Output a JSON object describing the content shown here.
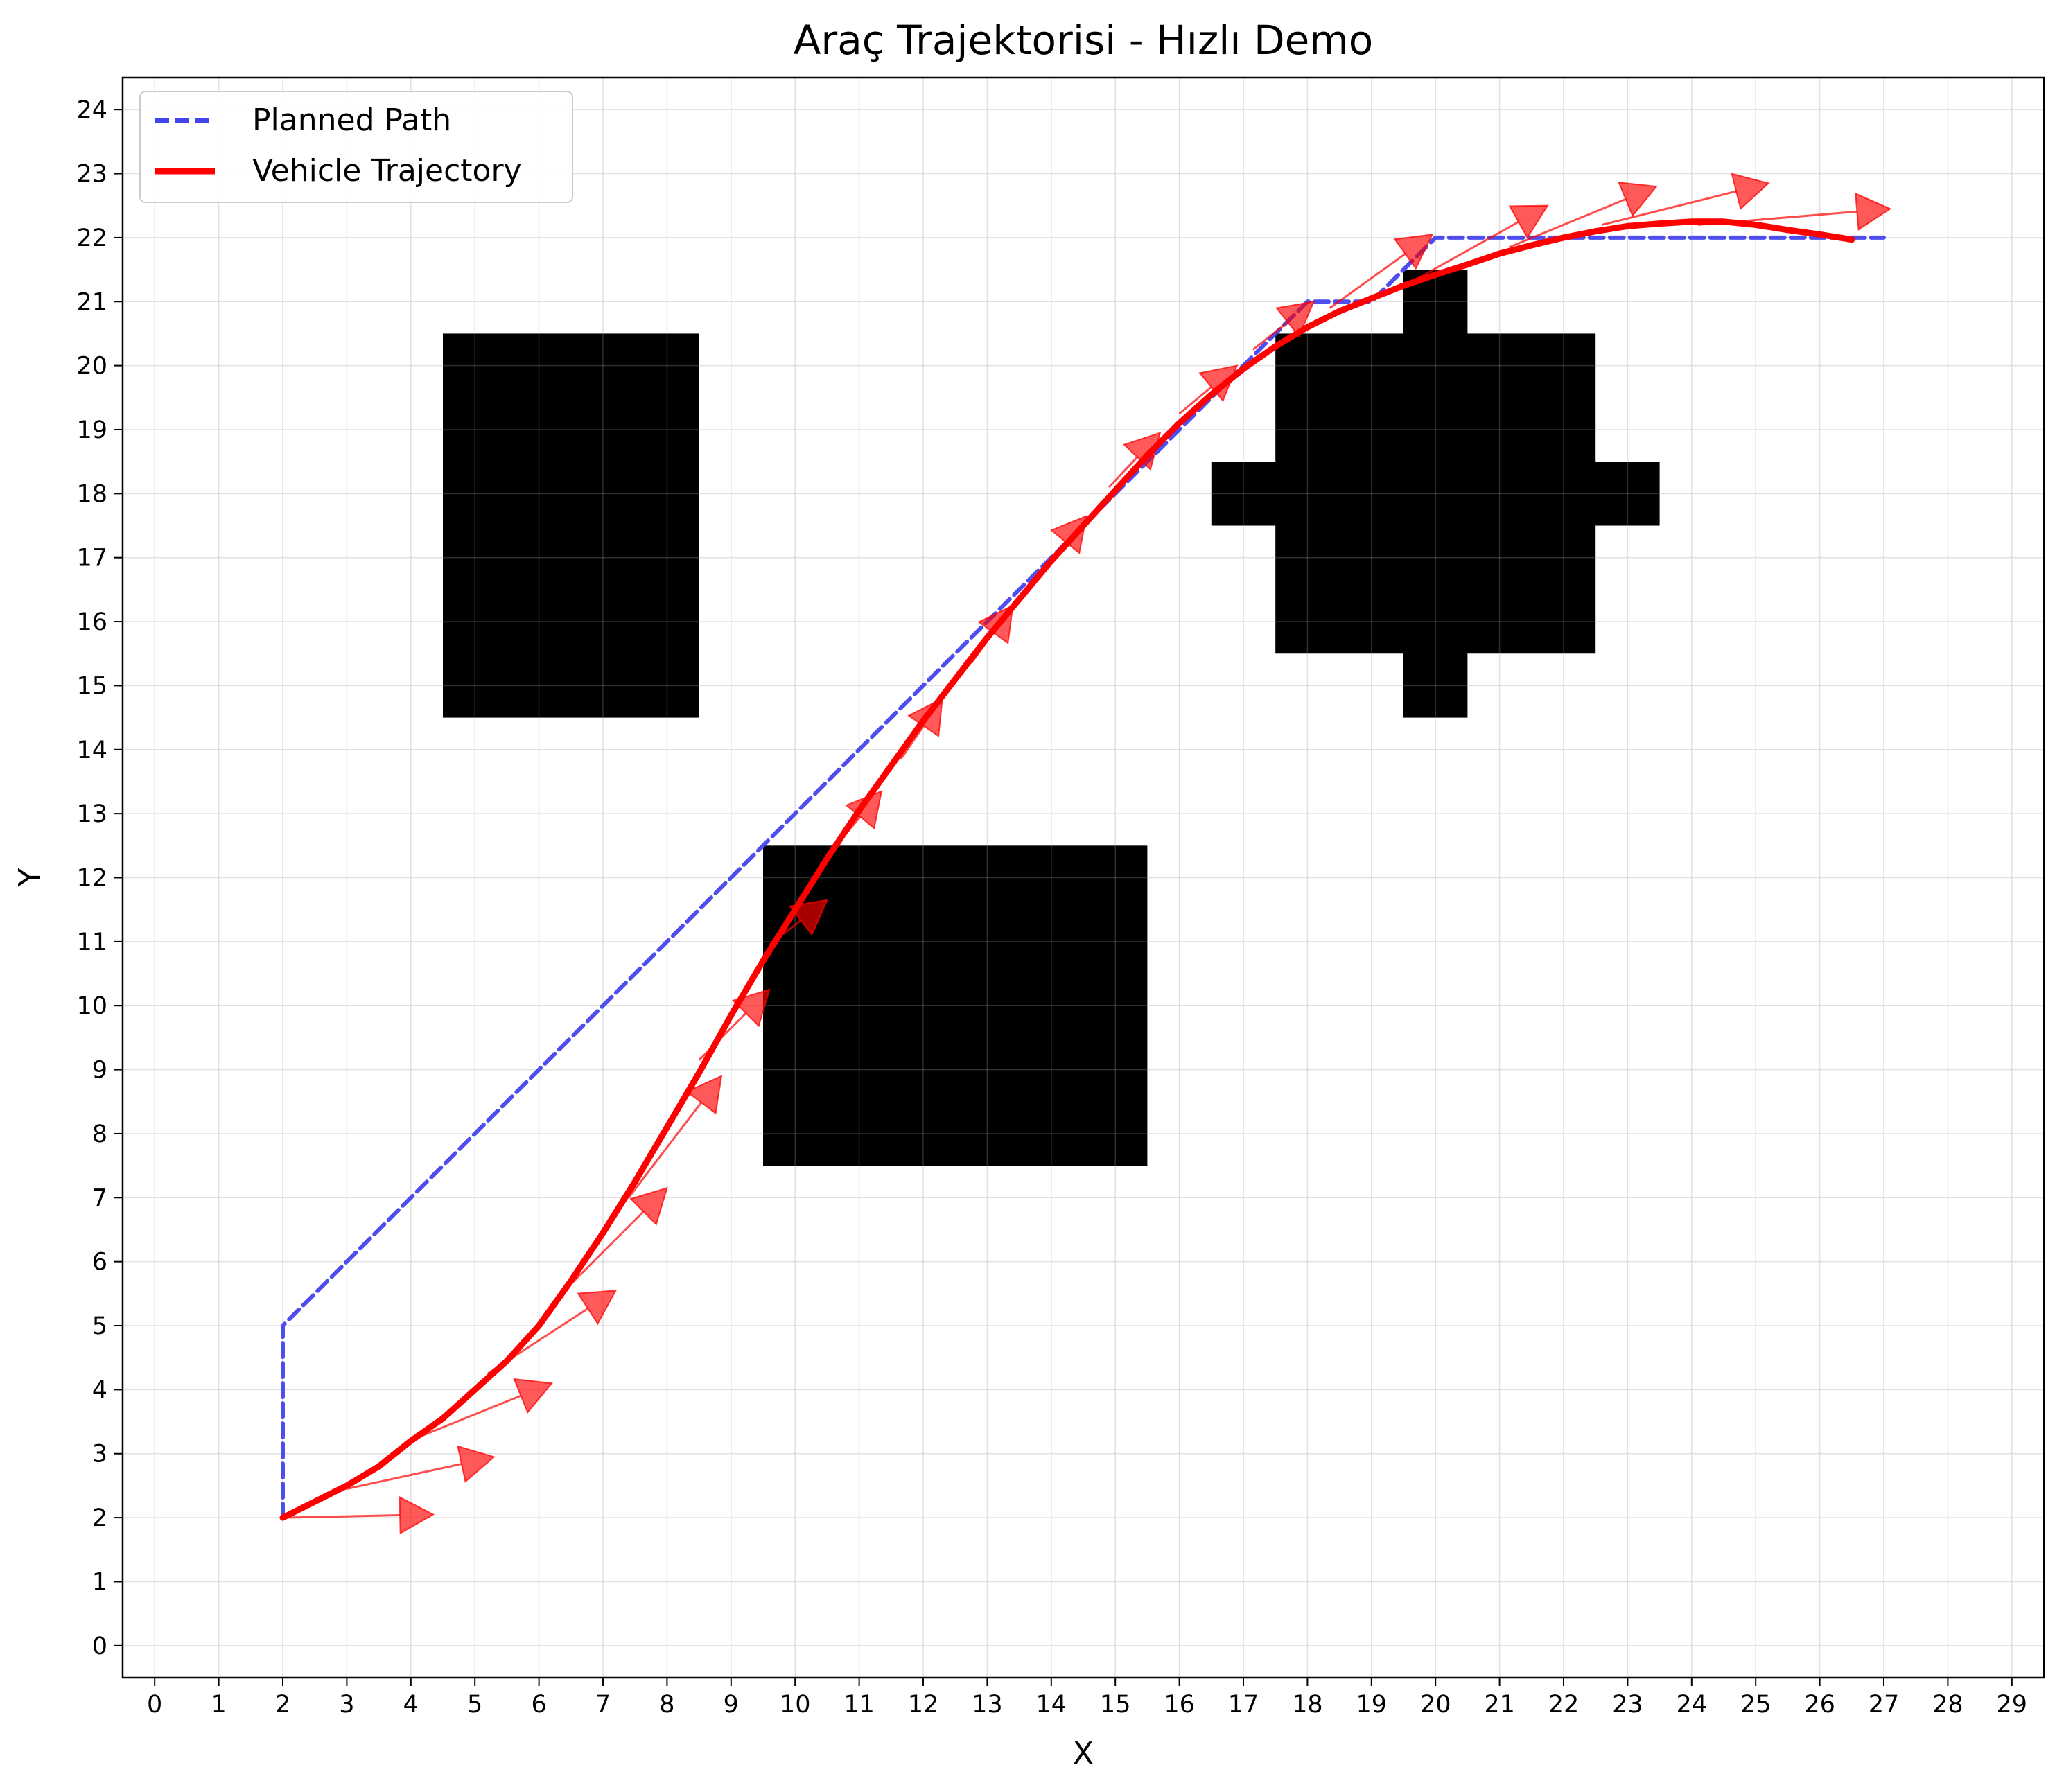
{
  "chart_data": {
    "type": "line",
    "title": "Araç Trajektorisi - Hızlı Demo",
    "xlabel": "X",
    "ylabel": "Y",
    "xlim": [
      -0.5,
      29.5
    ],
    "ylim": [
      -0.5,
      24.5
    ],
    "xticks": [
      0,
      1,
      2,
      3,
      4,
      5,
      6,
      7,
      8,
      9,
      10,
      11,
      12,
      13,
      14,
      15,
      16,
      17,
      18,
      19,
      20,
      21,
      22,
      23,
      24,
      25,
      26,
      27,
      28,
      29
    ],
    "yticks": [
      0,
      1,
      2,
      3,
      4,
      5,
      6,
      7,
      8,
      9,
      10,
      11,
      12,
      13,
      14,
      15,
      16,
      17,
      18,
      19,
      20,
      21,
      22,
      23,
      24
    ],
    "grid": true,
    "legend_position": "top-left",
    "obstacles": [
      {
        "x0": 4.5,
        "x1": 8.5,
        "y0": 14.5,
        "y1": 20.5
      },
      {
        "x0": 9.5,
        "x1": 15.5,
        "y0": 7.5,
        "y1": 12.5
      },
      {
        "x0": 17.5,
        "x1": 22.5,
        "y0": 15.5,
        "y1": 20.5
      },
      {
        "x0": 16.5,
        "x1": 23.5,
        "y0": 17.5,
        "y1": 18.5
      },
      {
        "x0": 19.5,
        "x1": 20.5,
        "y0": 14.5,
        "y1": 21.5
      }
    ],
    "series": [
      {
        "name": "Planned Path",
        "style": "dashed",
        "color": "#4444ee",
        "x": [
          2,
          2,
          10,
          14,
          18,
          19,
          20,
          21,
          22,
          23,
          24,
          25,
          26,
          27
        ],
        "y": [
          2,
          5,
          13,
          17,
          21,
          21,
          22,
          22,
          22,
          22,
          22,
          22,
          22,
          22
        ]
      },
      {
        "name": "Vehicle Trajectory",
        "style": "solid",
        "color": "#ff0000",
        "x": [
          2,
          2.5,
          3,
          3.5,
          4,
          4.5,
          5,
          5.5,
          6,
          6.5,
          7,
          7.5,
          8,
          8.5,
          9,
          9.5,
          10,
          10.5,
          11,
          11.5,
          12,
          12.5,
          13,
          13.5,
          14,
          14.5,
          15,
          15.5,
          16,
          16.5,
          17,
          17.5,
          18,
          18.5,
          19,
          19.5,
          20,
          20.5,
          21,
          21.5,
          22,
          22.5,
          23,
          23.5,
          24,
          24.5,
          25,
          25.5,
          26,
          26.5
        ],
        "y": [
          2.0,
          2.25,
          2.5,
          2.8,
          3.2,
          3.55,
          4.0,
          4.45,
          5.0,
          5.7,
          6.45,
          7.25,
          8.1,
          8.95,
          9.85,
          10.7,
          11.5,
          12.3,
          13.05,
          13.75,
          14.45,
          15.1,
          15.75,
          16.35,
          16.95,
          17.5,
          18.05,
          18.6,
          19.1,
          19.55,
          19.95,
          20.3,
          20.6,
          20.85,
          21.05,
          21.25,
          21.42,
          21.58,
          21.75,
          21.88,
          22.0,
          22.1,
          22.18,
          22.22,
          22.25,
          22.25,
          22.2,
          22.12,
          22.05,
          21.97
        ]
      }
    ],
    "heading_arrows": [
      {
        "x": 2.0,
        "y": 2.0,
        "dx": 2.35,
        "dy": 0.05
      },
      {
        "x": 3.0,
        "y": 2.45,
        "dx": 2.3,
        "dy": 0.5
      },
      {
        "x": 4.1,
        "y": 3.25,
        "dx": 2.1,
        "dy": 0.85
      },
      {
        "x": 5.2,
        "y": 4.25,
        "dx": 2.0,
        "dy": 1.3
      },
      {
        "x": 6.3,
        "y": 5.45,
        "dx": 1.7,
        "dy": 1.7
      },
      {
        "x": 7.4,
        "y": 7.0,
        "dx": 1.45,
        "dy": 1.9
      },
      {
        "x": 8.5,
        "y": 9.15,
        "dx": 1.1,
        "dy": 1.1
      },
      {
        "x": 9.6,
        "y": 10.95,
        "dx": 0.9,
        "dy": 0.7
      },
      {
        "x": 10.6,
        "y": 12.45,
        "dx": 0.75,
        "dy": 0.9
      },
      {
        "x": 11.65,
        "y": 13.85,
        "dx": 0.65,
        "dy": 0.95
      },
      {
        "x": 12.75,
        "y": 15.35,
        "dx": 0.65,
        "dy": 0.9
      },
      {
        "x": 13.85,
        "y": 16.8,
        "dx": 0.7,
        "dy": 0.85
      },
      {
        "x": 14.9,
        "y": 18.1,
        "dx": 0.8,
        "dy": 0.85
      },
      {
        "x": 16.0,
        "y": 19.25,
        "dx": 0.9,
        "dy": 0.75
      },
      {
        "x": 17.15,
        "y": 20.25,
        "dx": 0.95,
        "dy": 0.75
      },
      {
        "x": 18.35,
        "y": 20.9,
        "dx": 1.6,
        "dy": 1.15
      },
      {
        "x": 19.7,
        "y": 21.35,
        "dx": 2.05,
        "dy": 1.15
      },
      {
        "x": 21.15,
        "y": 21.85,
        "dx": 2.3,
        "dy": 0.95
      },
      {
        "x": 22.6,
        "y": 22.2,
        "dx": 2.6,
        "dy": 0.65
      },
      {
        "x": 24.1,
        "y": 22.2,
        "dx": 3.0,
        "dy": 0.25
      }
    ]
  }
}
